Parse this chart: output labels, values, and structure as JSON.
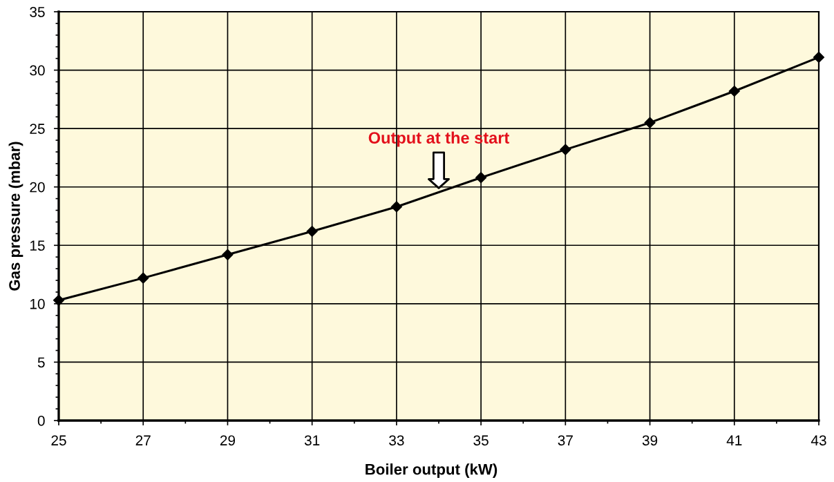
{
  "chart_data": {
    "type": "line",
    "xlabel": "Boiler output (kW)",
    "ylabel": "Gas pressure (mbar)",
    "x": [
      25,
      27,
      29,
      31,
      33,
      35,
      37,
      39,
      41,
      43
    ],
    "series": [
      {
        "color": "#000000",
        "values": [
          10.3,
          12.2,
          14.2,
          16.2,
          18.3,
          20.8,
          23.2,
          25.5,
          28.2,
          31.1
        ]
      }
    ],
    "xlim": [
      25,
      43
    ],
    "ylim": [
      0,
      35
    ],
    "xticks": [
      25,
      {
        "value": 26,
        "label": null
      },
      27,
      {
        "value": 28,
        "label": null
      },
      29,
      {
        "value": 30,
        "label": null
      },
      31,
      {
        "value": 32,
        "label": null
      },
      33,
      {
        "value": 34,
        "label": null
      },
      35,
      {
        "value": 36,
        "label": null
      },
      37,
      {
        "value": 38,
        "label": null
      },
      39,
      {
        "value": 40,
        "label": null
      },
      41,
      {
        "value": 42,
        "label": null
      },
      43
    ],
    "yticks": [
      0,
      {
        "value": 1,
        "label": null
      },
      {
        "value": 2,
        "label": null
      },
      {
        "value": 3,
        "label": null
      },
      {
        "value": 4,
        "label": null
      },
      5,
      {
        "value": 6,
        "label": null
      },
      {
        "value": 7,
        "label": null
      },
      {
        "value": 8,
        "label": null
      },
      {
        "value": 9,
        "label": null
      },
      10,
      {
        "value": 11,
        "label": null
      },
      {
        "value": 12,
        "label": null
      },
      {
        "value": 13,
        "label": null
      },
      {
        "value": 14,
        "label": null
      },
      15,
      {
        "value": 16,
        "label": null
      },
      {
        "value": 17,
        "label": null
      },
      {
        "value": 18,
        "label": null
      },
      {
        "value": 19,
        "label": null
      },
      20,
      {
        "value": 21,
        "label": null
      },
      {
        "value": 22,
        "label": null
      },
      {
        "value": 23,
        "label": null
      },
      {
        "value": 24,
        "label": null
      },
      25,
      {
        "value": 26,
        "label": null
      },
      {
        "value": 27,
        "label": null
      },
      {
        "value": 28,
        "label": null
      },
      {
        "value": 29,
        "label": null
      },
      30,
      {
        "value": 31,
        "label": null
      },
      {
        "value": 32,
        "label": null
      },
      {
        "value": 33,
        "label": null
      },
      {
        "value": 34,
        "label": null
      },
      35
    ],
    "grid": true,
    "marker": "diamond",
    "line_style": "solid",
    "annotations": [
      {
        "text": "Output at the start",
        "x": 34,
        "y": 19.9
      }
    ]
  }
}
